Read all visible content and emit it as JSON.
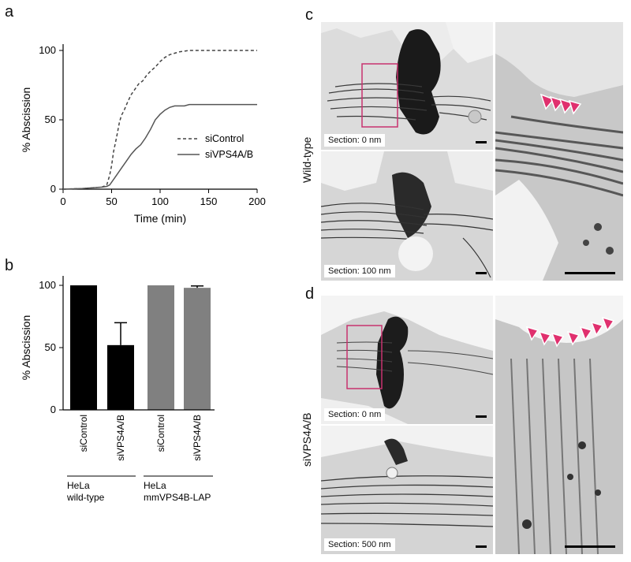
{
  "panel_a": {
    "letter": "a",
    "chart_data": {
      "type": "line",
      "xlabel": "Time (min)",
      "ylabel": "% Abscission",
      "xlim": [
        0,
        200
      ],
      "ylim": [
        0,
        100
      ],
      "xticks": [
        "0",
        "50",
        "100",
        "150",
        "200"
      ],
      "yticks": [
        "0",
        "50",
        "100"
      ],
      "legend_position": "bottom-right",
      "series": [
        {
          "name": "siControl",
          "style": "dashed",
          "color": "#444444",
          "x": [
            0,
            20,
            40,
            45,
            48,
            50,
            52,
            55,
            58,
            60,
            63,
            66,
            70,
            74,
            78,
            82,
            86,
            90,
            95,
            100,
            105,
            110,
            115,
            120,
            130,
            140,
            150,
            160,
            170,
            180,
            190,
            200
          ],
          "y": [
            0,
            0.5,
            1.5,
            3,
            10,
            17,
            27,
            37,
            48,
            53,
            57,
            62,
            68,
            72,
            76,
            78,
            82,
            85,
            88,
            92,
            95,
            97,
            98,
            99,
            100,
            100,
            100,
            100,
            100,
            100,
            100,
            100
          ]
        },
        {
          "name": "siVPS4A/B",
          "style": "solid",
          "color": "#555555",
          "x": [
            0,
            20,
            40,
            45,
            48,
            50,
            55,
            60,
            65,
            70,
            75,
            80,
            85,
            90,
            95,
            100,
            105,
            110,
            115,
            120,
            125,
            130,
            140,
            150,
            160,
            170,
            180,
            190,
            200
          ],
          "y": [
            0,
            0.5,
            1.5,
            2,
            3,
            5,
            10,
            15,
            20,
            25,
            29,
            32,
            37,
            43,
            50,
            54,
            57,
            59,
            60,
            60,
            60,
            61,
            61,
            61,
            61,
            61,
            61,
            61,
            61
          ]
        }
      ]
    }
  },
  "panel_b": {
    "letter": "b",
    "chart_data": {
      "type": "bar",
      "ylabel": "% Abscission",
      "ylim": [
        0,
        100
      ],
      "yticks": [
        "0",
        "50",
        "100"
      ],
      "categories": [
        "siControl",
        "siVPS4A/B",
        "siControl",
        "siVPS4A/B"
      ],
      "values": [
        100,
        52,
        100,
        98
      ],
      "errors": [
        0,
        18,
        0,
        1.5
      ],
      "colors": [
        "#000000",
        "#000000",
        "#808080",
        "#808080"
      ],
      "groups": [
        {
          "line1": "HeLa",
          "line2": "wild-type"
        },
        {
          "line1": "HeLa",
          "line2": "mmVPS4B-LAP"
        }
      ]
    }
  },
  "panel_c": {
    "letter": "c",
    "row_label": "Wild-type",
    "section_top": "Section: 0 nm",
    "section_bottom": "Section: 100 nm"
  },
  "panel_d": {
    "letter": "d",
    "row_label": "siVPS4A/B",
    "section_top": "Section: 0 nm",
    "section_bottom": "Section: 500 nm"
  },
  "colors": {
    "roi_box": "#c8326e",
    "arrowhead": "#e0306e"
  }
}
